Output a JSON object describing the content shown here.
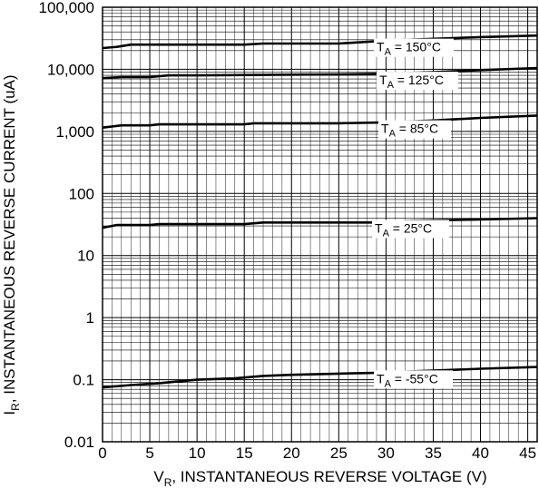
{
  "chart_data": {
    "type": "line",
    "title": "",
    "xlabel": {
      "prefix": "V",
      "sub": "R",
      "rest": ", INSTANTANEOUS REVERSE VOLTAGE (V)"
    },
    "ylabel": {
      "prefix": "I",
      "sub": "R",
      "rest": ", INSTANTANEOUS REVERSE CURRENT (uA)"
    },
    "xlim": [
      0,
      46
    ],
    "ylim": [
      0.01,
      100000
    ],
    "yscale": "log",
    "grid": true,
    "xticks": [
      0,
      5,
      10,
      15,
      20,
      25,
      30,
      35,
      40,
      45
    ],
    "xtick_labels": [
      "0",
      "5",
      "10",
      "15",
      "20",
      "25",
      "30",
      "35",
      "40",
      "45"
    ],
    "yticks": [
      0.01,
      0.1,
      1,
      10,
      100,
      1000,
      10000,
      100000
    ],
    "ytick_labels": [
      "0.01",
      "0.1",
      "1",
      "10",
      "100",
      "1,000",
      "10,000",
      "100,000"
    ],
    "series": [
      {
        "name": "T_A = 150°C",
        "label": {
          "prefix": "T",
          "sub": "A",
          "rest": " = 150°C"
        },
        "x": [
          0,
          1.5,
          3,
          5,
          10,
          15,
          17,
          20,
          25,
          30,
          35,
          40,
          46
        ],
        "y": [
          22000,
          23000,
          25000,
          25000,
          25000,
          25000,
          26000,
          26000,
          26000,
          29000,
          31000,
          33000,
          35000
        ]
      },
      {
        "name": "T_A = 125°C",
        "label": {
          "prefix": "T",
          "sub": "A",
          "rest": " = 125°C"
        },
        "x": [
          0,
          2,
          5,
          7,
          10,
          15,
          20,
          25,
          30,
          35,
          40,
          46
        ],
        "y": [
          7200,
          7500,
          7500,
          8000,
          8000,
          8100,
          8200,
          8300,
          8500,
          9000,
          9700,
          10500
        ]
      },
      {
        "name": "T_A = 85°C",
        "label": {
          "prefix": "T",
          "sub": "A",
          "rest": " = 85°C"
        },
        "x": [
          0,
          2,
          5,
          6,
          10,
          15,
          16,
          20,
          25,
          30,
          35,
          40,
          46
        ],
        "y": [
          1150,
          1250,
          1250,
          1300,
          1300,
          1300,
          1350,
          1350,
          1350,
          1400,
          1500,
          1650,
          1800
        ]
      },
      {
        "name": "T_A = 25°C",
        "label": {
          "prefix": "T",
          "sub": "A",
          "rest": " = 25°C"
        },
        "x": [
          0,
          1.5,
          5,
          6,
          10,
          15,
          17,
          20,
          25,
          30,
          32,
          35,
          40,
          46
        ],
        "y": [
          28,
          31,
          31,
          32,
          32,
          32,
          34,
          34,
          34,
          34,
          36,
          37,
          38,
          40
        ]
      },
      {
        "name": "T_A = -55°C",
        "label": {
          "prefix": "T",
          "sub": "A",
          "rest": " = -55°C"
        },
        "x": [
          0,
          3,
          6,
          10,
          14,
          17,
          20,
          25,
          30,
          32,
          35,
          40,
          46
        ],
        "y": [
          0.075,
          0.082,
          0.088,
          0.1,
          0.105,
          0.115,
          0.12,
          0.125,
          0.13,
          0.135,
          0.14,
          0.15,
          0.16
        ]
      }
    ]
  }
}
